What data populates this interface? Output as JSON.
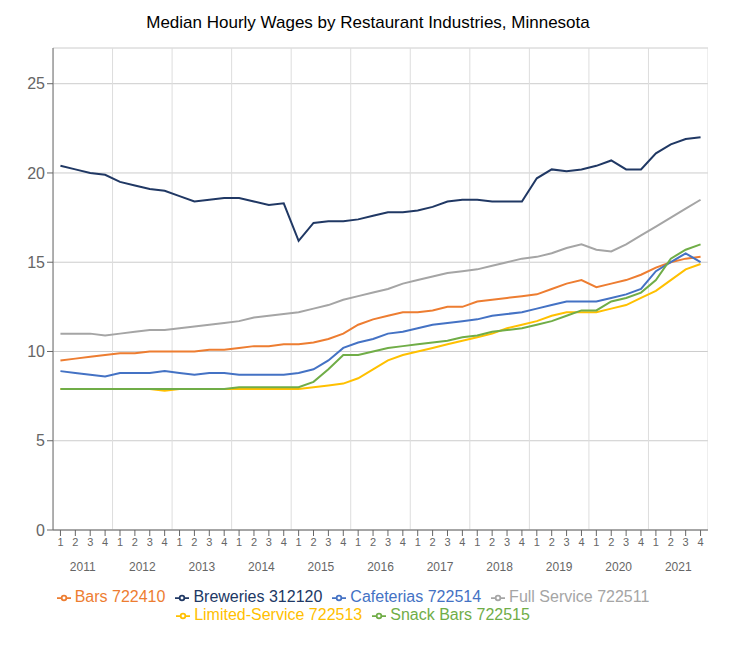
{
  "chart_data": {
    "type": "line",
    "title": "Median Hourly Wages by Restaurant Industries, Minnesota",
    "categories": [
      "1",
      "2",
      "3",
      "4",
      "1",
      "2",
      "3",
      "4",
      "1",
      "2",
      "3",
      "4",
      "1",
      "2",
      "3",
      "4",
      "1",
      "2",
      "3",
      "4",
      "1",
      "2",
      "3",
      "4",
      "1",
      "2",
      "3",
      "4",
      "1",
      "2",
      "3",
      "4",
      "1",
      "2",
      "3",
      "4",
      "1",
      "2",
      "3",
      "4",
      "1",
      "2",
      "3",
      "4"
    ],
    "x_groups": [
      2011,
      2012,
      2013,
      2014,
      2015,
      2016,
      2017,
      2018,
      2019,
      2020,
      2021
    ],
    "ylim": [
      0,
      27
    ],
    "yticks": [
      0,
      5,
      10,
      15,
      20,
      25
    ],
    "grid": true,
    "legend": "bottom",
    "series": [
      {
        "name": "Breweries 312120",
        "color": "#203864",
        "values": [
          20.4,
          20.2,
          20.0,
          19.9,
          19.5,
          19.3,
          19.1,
          19.0,
          18.7,
          18.4,
          18.5,
          18.6,
          18.6,
          18.4,
          18.2,
          18.3,
          16.2,
          17.2,
          17.3,
          17.3,
          17.4,
          17.6,
          17.8,
          17.8,
          17.9,
          18.1,
          18.4,
          18.5,
          18.5,
          18.4,
          18.4,
          18.4,
          19.7,
          20.2,
          20.1,
          20.2,
          20.4,
          20.7,
          20.2,
          20.2,
          21.1,
          21.6,
          21.9,
          22.0
        ]
      },
      {
        "name": "Bars 722410",
        "color": "#ED7D31",
        "values": [
          9.5,
          9.6,
          9.7,
          9.8,
          9.9,
          9.9,
          10.0,
          10.0,
          10.0,
          10.0,
          10.1,
          10.1,
          10.2,
          10.3,
          10.3,
          10.4,
          10.4,
          10.5,
          10.7,
          11.0,
          11.5,
          11.8,
          12.0,
          12.2,
          12.2,
          12.3,
          12.5,
          12.5,
          12.8,
          12.9,
          13.0,
          13.1,
          13.2,
          13.5,
          13.8,
          14.0,
          13.6,
          13.8,
          14.0,
          14.3,
          14.7,
          15.0,
          15.2,
          15.3
        ]
      },
      {
        "name": "Full Service 722511",
        "color": "#A5A5A5",
        "values": [
          11.0,
          11.0,
          11.0,
          10.9,
          11.0,
          11.1,
          11.2,
          11.2,
          11.3,
          11.4,
          11.5,
          11.6,
          11.7,
          11.9,
          12.0,
          12.1,
          12.2,
          12.4,
          12.6,
          12.9,
          13.1,
          13.3,
          13.5,
          13.8,
          14.0,
          14.2,
          14.4,
          14.5,
          14.6,
          14.8,
          15.0,
          15.2,
          15.3,
          15.5,
          15.8,
          16.0,
          15.7,
          15.6,
          16.0,
          16.5,
          17.0,
          17.5,
          18.0,
          18.5
        ]
      },
      {
        "name": "Limited-Service 722513",
        "color": "#FFC000",
        "values": [
          7.9,
          7.9,
          7.9,
          7.9,
          7.9,
          7.9,
          7.9,
          7.8,
          7.9,
          7.9,
          7.9,
          7.9,
          7.9,
          7.9,
          7.9,
          7.9,
          7.9,
          8.0,
          8.1,
          8.2,
          8.5,
          9.0,
          9.5,
          9.8,
          10.0,
          10.2,
          10.4,
          10.6,
          10.8,
          11.0,
          11.3,
          11.5,
          11.7,
          12.0,
          12.2,
          12.2,
          12.2,
          12.4,
          12.6,
          13.0,
          13.4,
          14.0,
          14.6,
          14.9
        ]
      },
      {
        "name": "Cafeterias 722514",
        "color": "#4472C4",
        "values": [
          8.9,
          8.8,
          8.7,
          8.6,
          8.8,
          8.8,
          8.8,
          8.9,
          8.8,
          8.7,
          8.8,
          8.8,
          8.7,
          8.7,
          8.7,
          8.7,
          8.8,
          9.0,
          9.5,
          10.2,
          10.5,
          10.7,
          11.0,
          11.1,
          11.3,
          11.5,
          11.6,
          11.7,
          11.8,
          12.0,
          12.1,
          12.2,
          12.4,
          12.6,
          12.8,
          12.8,
          12.8,
          13.0,
          13.2,
          13.5,
          14.5,
          15.0,
          15.5,
          15.0
        ]
      },
      {
        "name": "Snack Bars 722515",
        "color": "#70AD47",
        "values": [
          7.9,
          7.9,
          7.9,
          7.9,
          7.9,
          7.9,
          7.9,
          7.9,
          7.9,
          7.9,
          7.9,
          7.9,
          8.0,
          8.0,
          8.0,
          8.0,
          8.0,
          8.3,
          9.0,
          9.8,
          9.8,
          10.0,
          10.2,
          10.3,
          10.4,
          10.5,
          10.6,
          10.8,
          10.9,
          11.1,
          11.2,
          11.3,
          11.5,
          11.7,
          12.0,
          12.3,
          12.3,
          12.8,
          13.0,
          13.3,
          14.0,
          15.2,
          15.7,
          16.0
        ]
      }
    ]
  }
}
